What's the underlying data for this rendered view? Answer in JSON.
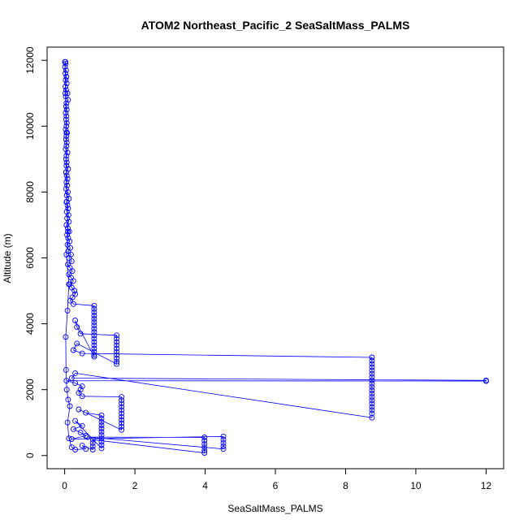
{
  "chart_data": {
    "type": "scatter",
    "title": "ATOM2 Northeast_Pacific_2 SeaSaltMass_PALMS",
    "xlabel": "SeaSaltMass_PALMS",
    "ylabel": "Altitude (m)",
    "xlim": [
      -0.5,
      12.5
    ],
    "ylim": [
      -400,
      12400
    ],
    "x_ticks": [
      0,
      2,
      4,
      6,
      8,
      10,
      12
    ],
    "x_tick_labels": [
      "0",
      "2",
      "4",
      "6",
      "8",
      "10",
      "12"
    ],
    "y_ticks": [
      0,
      2000,
      4000,
      6000,
      8000,
      10000,
      12000
    ],
    "y_tick_labels": [
      "0",
      "2000",
      "4000",
      "6000",
      "8000",
      "10000",
      "12000"
    ],
    "grid": false,
    "legend": "none",
    "marker": "open-circle",
    "line_connected": true,
    "series": [
      {
        "color": "#0000ff",
        "points": [
          [
            0.02,
            11950
          ],
          [
            0.03,
            11900
          ],
          [
            0.01,
            11800
          ],
          [
            0.04,
            11700
          ],
          [
            0.02,
            11600
          ],
          [
            0.05,
            11500
          ],
          [
            0.03,
            11400
          ],
          [
            0.06,
            11300
          ],
          [
            0.02,
            11200
          ],
          [
            0.04,
            11100
          ],
          [
            0.08,
            11000
          ],
          [
            0.03,
            10900
          ],
          [
            0.1,
            10800
          ],
          [
            0.05,
            10700
          ],
          [
            0.04,
            10600
          ],
          [
            0.06,
            10500
          ],
          [
            0.03,
            10400
          ],
          [
            0.05,
            10300
          ],
          [
            0.04,
            10200
          ],
          [
            0.06,
            10100
          ],
          [
            0.05,
            10000
          ],
          [
            0.03,
            9900
          ],
          [
            0.07,
            9800
          ],
          [
            0.05,
            9700
          ],
          [
            0.04,
            9600
          ],
          [
            0.06,
            9500
          ],
          [
            0.05,
            9400
          ],
          [
            0.03,
            9300
          ],
          [
            0.08,
            9200
          ],
          [
            0.05,
            9100
          ],
          [
            0.04,
            9000
          ],
          [
            0.06,
            8900
          ],
          [
            0.05,
            8800
          ],
          [
            0.1,
            8700
          ],
          [
            0.04,
            8600
          ],
          [
            0.06,
            8500
          ],
          [
            0.08,
            8400
          ],
          [
            0.05,
            8300
          ],
          [
            0.07,
            8200
          ],
          [
            0.04,
            8100
          ],
          [
            0.09,
            8000
          ],
          [
            0.06,
            7900
          ],
          [
            0.12,
            7800
          ],
          [
            0.05,
            7700
          ],
          [
            0.08,
            7600
          ],
          [
            0.1,
            7500
          ],
          [
            0.06,
            7400
          ],
          [
            0.11,
            7300
          ],
          [
            0.07,
            7200
          ],
          [
            0.12,
            7100
          ],
          [
            0.05,
            7000
          ],
          [
            0.09,
            6900
          ],
          [
            0.13,
            6800
          ],
          [
            0.07,
            6700
          ],
          [
            0.1,
            6600
          ],
          [
            0.14,
            6500
          ],
          [
            0.08,
            6400
          ],
          [
            0.16,
            6300
          ],
          [
            0.1,
            6200
          ],
          [
            0.18,
            6100
          ],
          [
            0.12,
            6000
          ],
          [
            0.2,
            5900
          ],
          [
            0.09,
            5800
          ],
          [
            0.15,
            5700
          ],
          [
            0.22,
            5600
          ],
          [
            0.12,
            5500
          ],
          [
            0.18,
            5400
          ],
          [
            0.25,
            5300
          ],
          [
            0.14,
            5200
          ],
          [
            0.2,
            5100
          ],
          [
            0.28,
            5000
          ],
          [
            0.3,
            4900
          ],
          [
            0.22,
            4800
          ],
          [
            0.16,
            4700
          ],
          [
            0.25,
            4600
          ],
          [
            0.84,
            4550
          ],
          [
            0.84,
            4450
          ],
          [
            0.84,
            4350
          ],
          [
            0.84,
            4250
          ],
          [
            0.84,
            4150
          ],
          [
            0.84,
            4050
          ],
          [
            0.84,
            3950
          ],
          [
            0.84,
            3850
          ],
          [
            0.84,
            3750
          ],
          [
            0.84,
            3650
          ],
          [
            0.84,
            3550
          ],
          [
            0.84,
            3450
          ],
          [
            0.84,
            3350
          ],
          [
            0.84,
            3250
          ],
          [
            0.84,
            3150
          ],
          [
            0.84,
            3050
          ],
          [
            0.84,
            3000
          ],
          [
            0.3,
            4100
          ],
          [
            0.35,
            3900
          ],
          [
            0.45,
            3700
          ],
          [
            1.48,
            3650
          ],
          [
            1.48,
            3550
          ],
          [
            1.48,
            3450
          ],
          [
            1.48,
            3350
          ],
          [
            1.48,
            3250
          ],
          [
            1.48,
            3150
          ],
          [
            1.48,
            3050
          ],
          [
            1.48,
            2950
          ],
          [
            1.48,
            2850
          ],
          [
            1.48,
            2780
          ],
          [
            0.35,
            3400
          ],
          [
            0.25,
            3200
          ],
          [
            0.5,
            3100
          ],
          [
            8.75,
            2980
          ],
          [
            8.75,
            2880
          ],
          [
            8.75,
            2780
          ],
          [
            8.75,
            2680
          ],
          [
            8.75,
            2580
          ],
          [
            8.75,
            2480
          ],
          [
            8.75,
            2380
          ],
          [
            8.75,
            2280
          ],
          [
            8.75,
            2180
          ],
          [
            8.75,
            2080
          ],
          [
            8.75,
            1980
          ],
          [
            8.75,
            1880
          ],
          [
            8.75,
            1780
          ],
          [
            8.75,
            1680
          ],
          [
            8.75,
            1580
          ],
          [
            8.75,
            1480
          ],
          [
            8.75,
            1380
          ],
          [
            8.75,
            1280
          ],
          [
            8.75,
            1150
          ],
          [
            0.3,
            2500
          ],
          [
            0.2,
            2350
          ],
          [
            12.0,
            2280
          ],
          [
            12.0,
            2260
          ],
          [
            0.05,
            2270
          ],
          [
            0.3,
            2200
          ],
          [
            0.5,
            2100
          ],
          [
            0.45,
            2000
          ],
          [
            0.4,
            1900
          ],
          [
            0.5,
            1800
          ],
          [
            1.62,
            1780
          ],
          [
            1.62,
            1680
          ],
          [
            1.62,
            1580
          ],
          [
            1.62,
            1480
          ],
          [
            1.62,
            1380
          ],
          [
            1.62,
            1280
          ],
          [
            1.62,
            1180
          ],
          [
            1.62,
            1080
          ],
          [
            1.62,
            980
          ],
          [
            1.62,
            880
          ],
          [
            1.62,
            780
          ],
          [
            0.4,
            1400
          ],
          [
            0.6,
            1300
          ],
          [
            1.05,
            1220
          ],
          [
            1.05,
            1120
          ],
          [
            1.05,
            1020
          ],
          [
            1.05,
            920
          ],
          [
            1.05,
            820
          ],
          [
            1.05,
            720
          ],
          [
            1.05,
            620
          ],
          [
            1.05,
            520
          ],
          [
            1.05,
            420
          ],
          [
            1.05,
            320
          ],
          [
            1.05,
            220
          ],
          [
            0.3,
            1050
          ],
          [
            0.5,
            900
          ],
          [
            0.25,
            800
          ],
          [
            0.45,
            700
          ],
          [
            0.6,
            600
          ],
          [
            0.2,
            500
          ],
          [
            4.52,
            580
          ],
          [
            4.52,
            480
          ],
          [
            4.52,
            380
          ],
          [
            4.52,
            280
          ],
          [
            4.52,
            200
          ],
          [
            0.65,
            560
          ],
          [
            3.98,
            550
          ],
          [
            3.98,
            450
          ],
          [
            3.98,
            350
          ],
          [
            3.98,
            250
          ],
          [
            3.98,
            150
          ],
          [
            3.98,
            80
          ],
          [
            0.8,
            480
          ],
          [
            0.8,
            380
          ],
          [
            0.8,
            280
          ],
          [
            0.8,
            180
          ],
          [
            0.5,
            300
          ],
          [
            0.6,
            200
          ],
          [
            0.3,
            180
          ],
          [
            0.2,
            250
          ],
          [
            0.12,
            520
          ],
          [
            0.08,
            1000
          ],
          [
            0.15,
            1500
          ],
          [
            0.1,
            1700
          ],
          [
            0.06,
            2000
          ],
          [
            0.04,
            2600
          ],
          [
            0.03,
            3600
          ],
          [
            0.08,
            4400
          ],
          [
            0.12,
            5200
          ],
          [
            0.05,
            6100
          ],
          [
            0.09,
            6800
          ],
          [
            0.06,
            7700
          ],
          [
            0.04,
            8600
          ],
          [
            0.05,
            9800
          ],
          [
            0.02,
            11000
          ],
          [
            0.01,
            11950
          ]
        ]
      }
    ]
  }
}
